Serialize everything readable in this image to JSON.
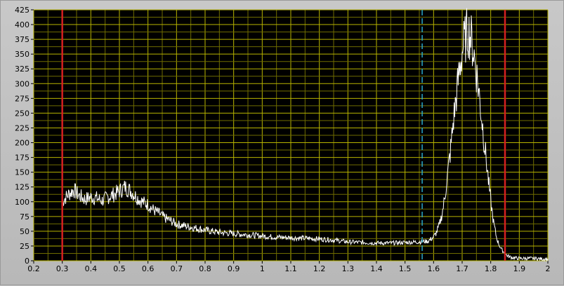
{
  "chart_data": {
    "type": "line",
    "title": "",
    "xlabel": "",
    "ylabel": "",
    "xlim": [
      0.2,
      2.0
    ],
    "ylim": [
      0,
      425
    ],
    "grid": true,
    "x_ticks": [
      "0.2",
      "0.3",
      "0.4",
      "0.5",
      "0.6",
      "0.7",
      "0.8",
      "0.9",
      "1",
      "1.1",
      "1.2",
      "1.3",
      "1.4",
      "1.5",
      "1.6",
      "1.7",
      "1.8",
      "1.9",
      "2"
    ],
    "y_ticks": [
      "0",
      "25",
      "50",
      "75",
      "100",
      "125",
      "150",
      "175",
      "200",
      "225",
      "250",
      "275",
      "300",
      "325",
      "350",
      "375",
      "400",
      "425"
    ],
    "series": [
      {
        "color": "#ffffff",
        "x": [
          0.3,
          0.32,
          0.34,
          0.36,
          0.38,
          0.4,
          0.42,
          0.44,
          0.46,
          0.48,
          0.5,
          0.52,
          0.54,
          0.56,
          0.58,
          0.6,
          0.62,
          0.64,
          0.66,
          0.68,
          0.7,
          0.72,
          0.74,
          0.76,
          0.78,
          0.8,
          0.85,
          0.9,
          0.95,
          1.0,
          1.05,
          1.1,
          1.15,
          1.2,
          1.25,
          1.3,
          1.35,
          1.4,
          1.45,
          1.5,
          1.55,
          1.58,
          1.6,
          1.61,
          1.62,
          1.63,
          1.64,
          1.65,
          1.66,
          1.67,
          1.68,
          1.69,
          1.7,
          1.71,
          1.72,
          1.73,
          1.74,
          1.75,
          1.76,
          1.77,
          1.78,
          1.79,
          1.8,
          1.81,
          1.82,
          1.83,
          1.84,
          1.85,
          1.86,
          1.87,
          1.88,
          1.9,
          1.92,
          1.94,
          1.96,
          1.98,
          2.0
        ],
        "values": [
          100,
          112,
          120,
          110,
          104,
          108,
          106,
          102,
          108,
          112,
          118,
          125,
          118,
          108,
          100,
          95,
          86,
          80,
          72,
          68,
          62,
          60,
          58,
          56,
          54,
          52,
          48,
          46,
          44,
          42,
          40,
          39,
          38,
          37,
          35,
          32,
          31,
          30,
          30,
          31,
          32,
          33,
          40,
          48,
          60,
          80,
          110,
          150,
          190,
          240,
          280,
          320,
          355,
          375,
          390,
          380,
          355,
          320,
          280,
          235,
          190,
          145,
          100,
          65,
          40,
          26,
          18,
          12,
          8,
          6,
          5,
          4,
          4,
          4,
          4,
          3,
          3
        ]
      }
    ],
    "cursors": [
      {
        "x": 0.3,
        "color": "#d42020",
        "style": "solid"
      },
      {
        "x": 1.85,
        "color": "#d42020",
        "style": "solid"
      },
      {
        "x": 1.56,
        "color": "#2aa7c9",
        "style": "dashed"
      }
    ]
  }
}
